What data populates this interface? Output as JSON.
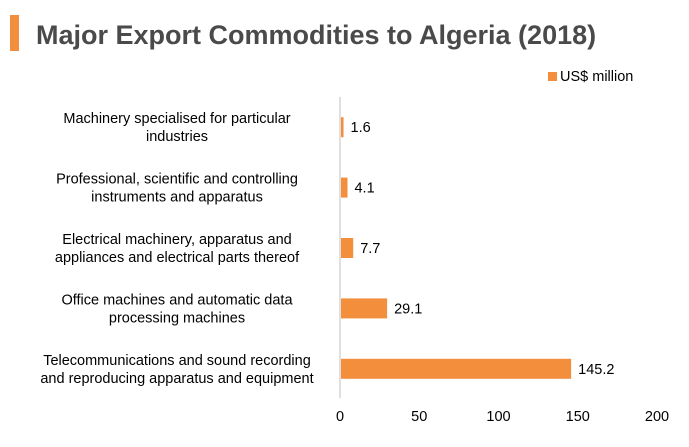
{
  "colors": {
    "accent": "#F28E3C",
    "bar": "#F28E3C",
    "title": "#4A4A4A",
    "axis": "#BFBFBF"
  },
  "chart_data": {
    "type": "bar",
    "orientation": "horizontal",
    "title": "Major Export Commodities to Algeria (2018)",
    "xlabel": "",
    "ylabel": "",
    "categories": [
      [
        "Machinery specialised for particular",
        "industries"
      ],
      [
        "Professional, scientific and controlling",
        "instruments and apparatus"
      ],
      [
        "Electrical machinery, apparatus and",
        "appliances and electrical parts thereof"
      ],
      [
        "Office machines and automatic data",
        "processing machines"
      ],
      [
        "Telecommunications and sound recording",
        "and reproducing apparatus and equipment"
      ]
    ],
    "series": [
      {
        "name": "US$ million",
        "values": [
          1.6,
          4.1,
          7.7,
          29.1,
          145.2
        ]
      }
    ],
    "value_labels": [
      "1.6",
      "4.1",
      "7.7",
      "29.1",
      "145.2"
    ],
    "xlim": [
      0,
      200
    ],
    "xticks": [
      0,
      50,
      100,
      150,
      200
    ],
    "grid": false,
    "legend_position": "top-right"
  }
}
